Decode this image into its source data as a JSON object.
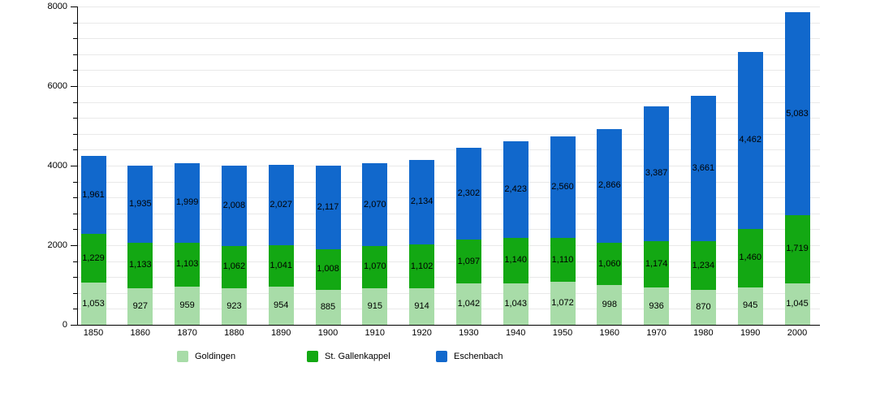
{
  "chart_data": {
    "type": "bar",
    "stacked": true,
    "title": "",
    "xlabel": "",
    "ylabel": "",
    "categories": [
      "1850",
      "1860",
      "1870",
      "1880",
      "1890",
      "1900",
      "1910",
      "1920",
      "1930",
      "1940",
      "1950",
      "1960",
      "1970",
      "1980",
      "1990",
      "2000"
    ],
    "series": [
      {
        "name": "Goldingen",
        "color": "#a8dca8",
        "values": [
          1053,
          927,
          959,
          923,
          954,
          885,
          915,
          914,
          1042,
          1043,
          1072,
          998,
          936,
          870,
          945,
          1045
        ]
      },
      {
        "name": "St. Gallenkappel",
        "color": "#13a813",
        "values": [
          1229,
          1133,
          1103,
          1062,
          1041,
          1008,
          1070,
          1102,
          1097,
          1140,
          1110,
          1060,
          1174,
          1234,
          1460,
          1719
        ]
      },
      {
        "name": "Eschenbach",
        "color": "#1168cc",
        "values": [
          1961,
          1935,
          1999,
          2008,
          2027,
          2117,
          2070,
          2134,
          2302,
          2423,
          2560,
          2866,
          3387,
          3661,
          4462,
          5083
        ]
      }
    ],
    "ylim": [
      0,
      8000
    ],
    "yticks": [
      0,
      2000,
      4000,
      6000,
      8000
    ],
    "minor_tick_step": 400,
    "grid": true,
    "legend_position": "bottom",
    "axis_color": "#000000",
    "gridline_color": "#e9e9e9",
    "value_label_color": "#000000"
  }
}
